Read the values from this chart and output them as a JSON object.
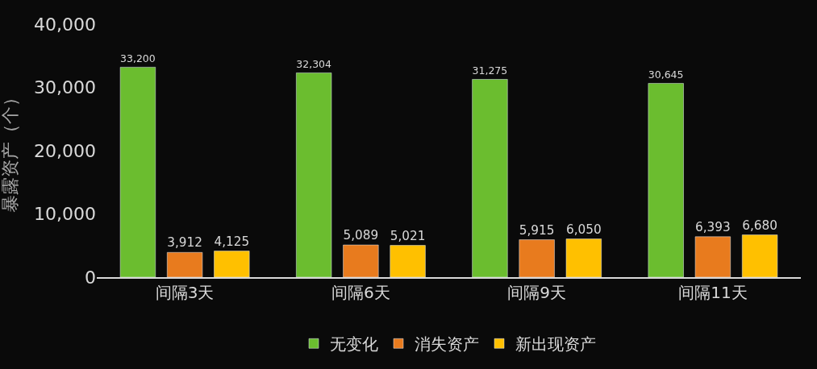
{
  "chart_data": {
    "type": "bar",
    "ylabel": "暴露资产（个）",
    "categories": [
      "间隔3天",
      "间隔6天",
      "间隔9天",
      "间隔11天"
    ],
    "series": [
      {
        "name": "无变化",
        "color": "#6bbd2f",
        "values": [
          33200,
          32304,
          31275,
          30645
        ],
        "value_labels": [
          "33,200",
          "32,304",
          "31,275",
          "30,645"
        ]
      },
      {
        "name": "消失资产",
        "color": "#e87b1e",
        "values": [
          3912,
          5089,
          5915,
          6393
        ],
        "value_labels": [
          "3,912",
          "5,089",
          "5,915",
          "6,393"
        ]
      },
      {
        "name": "新出现资产",
        "color": "#ffc000",
        "values": [
          4125,
          5021,
          6050,
          6680
        ],
        "value_labels": [
          "4,125",
          "5,021",
          "6,050",
          "6,680"
        ]
      }
    ],
    "ylim": [
      0,
      40000
    ],
    "yticks": [
      {
        "value": 0,
        "label": "0"
      },
      {
        "value": 10000,
        "label": "10,000"
      },
      {
        "value": 20000,
        "label": "20,000"
      },
      {
        "value": 30000,
        "label": "30,000"
      },
      {
        "value": 40000,
        "label": "40,000"
      }
    ],
    "grid": false,
    "legend": "bottom"
  }
}
